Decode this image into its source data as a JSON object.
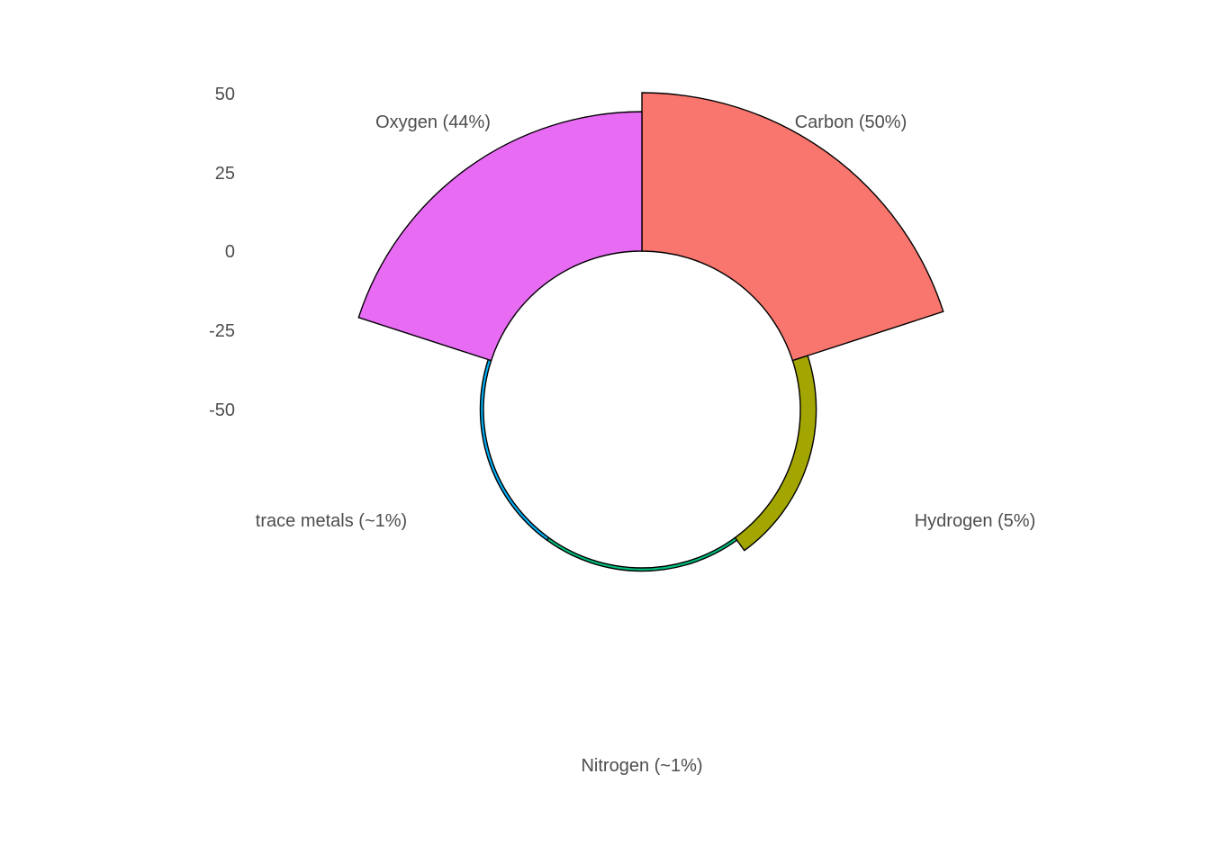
{
  "chart_data": {
    "type": "bar",
    "coord": "polar",
    "categories": [
      "Carbon (50%)",
      "Hydrogen (5%)",
      "Nitrogen (~1%)",
      "trace metals (~1%)",
      "Oxygen (44%)"
    ],
    "values": [
      50,
      5,
      1,
      1,
      44
    ],
    "colors": [
      "#F8766D",
      "#A3A500",
      "#00BF7D",
      "#00B0F6",
      "#E76BF3"
    ],
    "y_ticks": [
      50,
      25,
      0,
      -25,
      -50
    ],
    "y_tick_labels": [
      "50",
      "25",
      "0",
      "-25",
      "-50"
    ],
    "ylim": [
      -50,
      50
    ],
    "grid": false,
    "legend": "none",
    "title": "",
    "xlabel": "",
    "ylabel": ""
  }
}
